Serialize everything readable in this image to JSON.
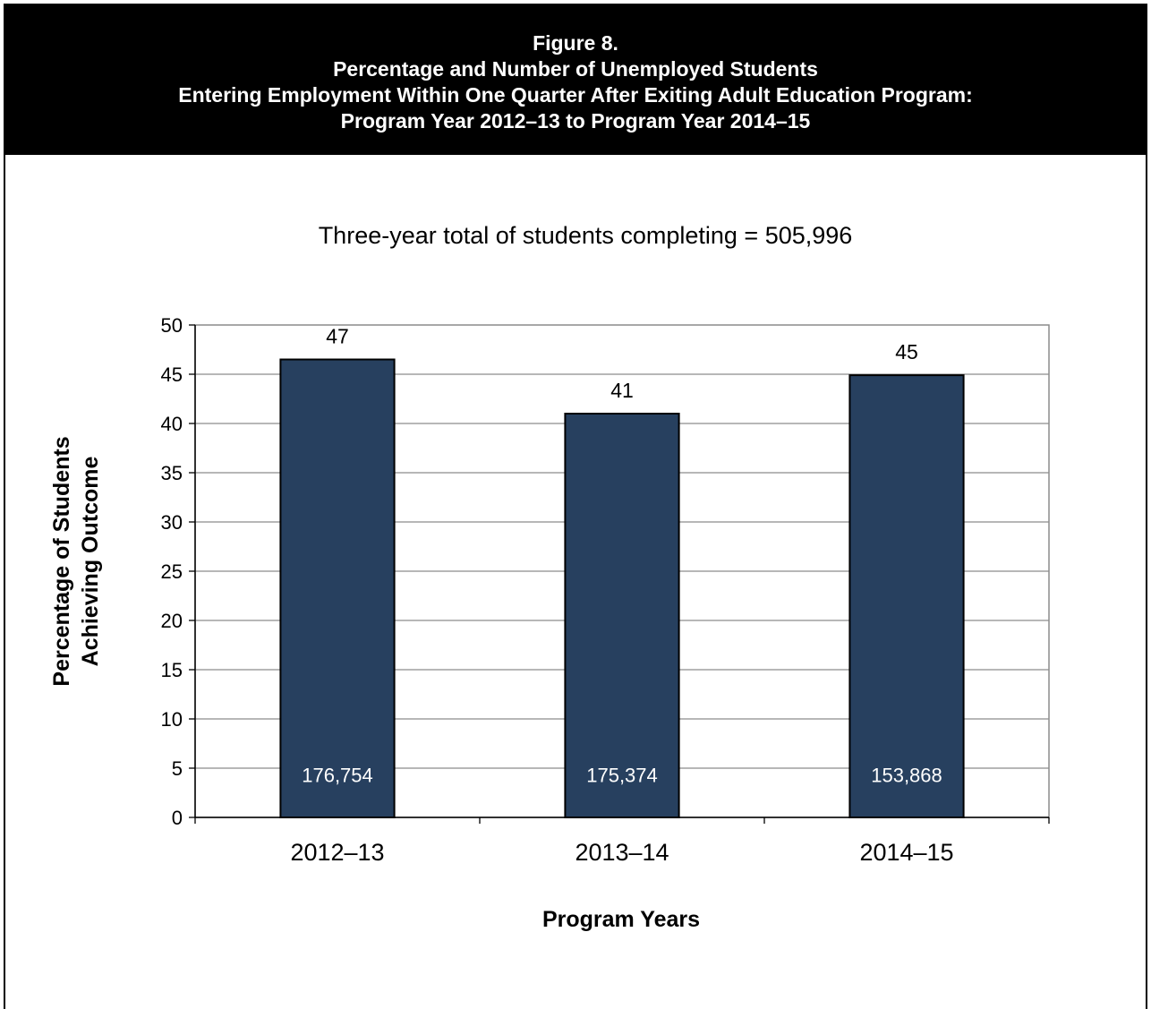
{
  "header": {
    "figure_label": "Figure 8.",
    "title_line1": "Percentage and Number of Unemployed Students",
    "title_line2": "Entering Employment Within One Quarter After Exiting Adult Education Program:",
    "title_line3": "Program Year 2012–13 to Program Year 2014–15"
  },
  "chart_data": {
    "type": "bar",
    "subtitle": "Three-year total of students completing = 505,996",
    "categories": [
      "2012–13",
      "2013–14",
      "2014–15"
    ],
    "values": [
      46.5,
      41,
      44.9
    ],
    "value_labels": [
      "47",
      "41",
      "45"
    ],
    "count_labels": [
      "176,754",
      "175,374",
      "153,868"
    ],
    "xlabel": "Program Years",
    "ylabel": [
      "Percentage of Students",
      "Achieving Outcome"
    ],
    "ylim": [
      0,
      50
    ],
    "yticks": [
      0,
      5,
      10,
      15,
      20,
      25,
      30,
      35,
      40,
      45,
      50
    ],
    "grid": true,
    "bar_color": "#27405f"
  }
}
